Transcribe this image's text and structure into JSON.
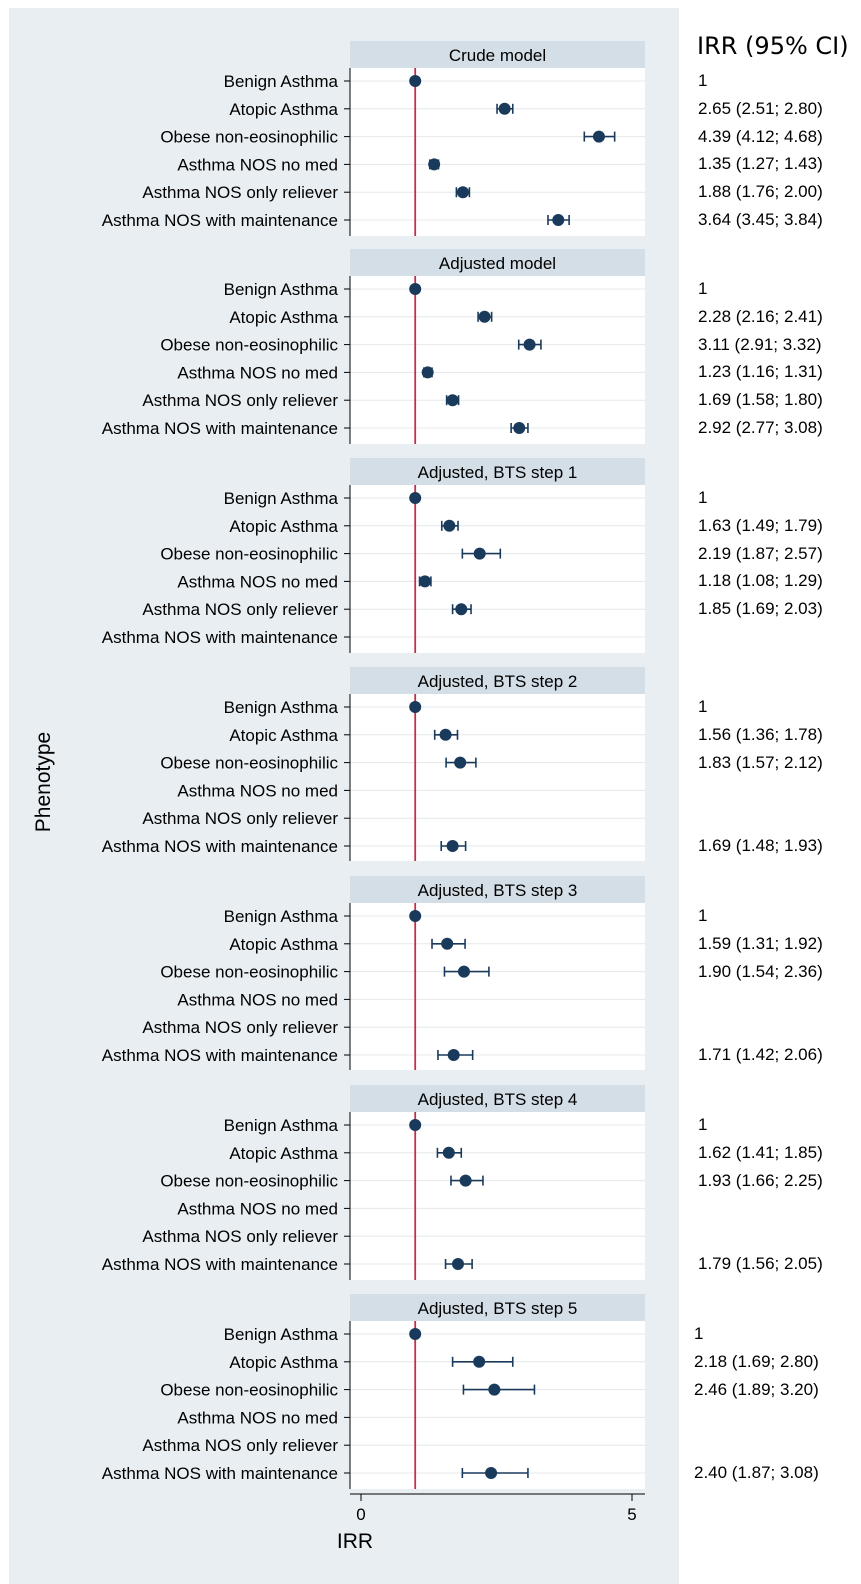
{
  "chart_data": {
    "type": "forest",
    "ylabel": "Phenotype",
    "xlabel": "IRR",
    "xlim": [
      0,
      5
    ],
    "xticks": [
      0,
      5
    ],
    "reference_line": 1,
    "colors": {
      "marker": "#1a3a5c",
      "reference": "#c0304a",
      "panel_bg": "#ffffff",
      "plot_bg": "#e9eef2",
      "strip_bg": "#d4dee6"
    },
    "ci_header": "IRR (95% CI)",
    "categories": [
      "Benign Asthma",
      "Atopic Asthma",
      "Obese non-eosinophilic",
      "Asthma NOS no med",
      "Asthma NOS only reliever",
      "Asthma NOS with maintenance"
    ],
    "panels": [
      {
        "title": "Crude model",
        "rows": [
          {
            "est": 1,
            "lo": null,
            "hi": null,
            "text": "1"
          },
          {
            "est": 2.65,
            "lo": 2.51,
            "hi": 2.8,
            "text": "2.65 (2.51; 2.80)"
          },
          {
            "est": 4.39,
            "lo": 4.12,
            "hi": 4.68,
            "text": "4.39 (4.12; 4.68)"
          },
          {
            "est": 1.35,
            "lo": 1.27,
            "hi": 1.43,
            "text": "1.35 (1.27; 1.43)"
          },
          {
            "est": 1.88,
            "lo": 1.76,
            "hi": 2.0,
            "text": "1.88 (1.76; 2.00)"
          },
          {
            "est": 3.64,
            "lo": 3.45,
            "hi": 3.84,
            "text": "3.64 (3.45; 3.84)"
          }
        ]
      },
      {
        "title": "Adjusted model",
        "rows": [
          {
            "est": 1,
            "lo": null,
            "hi": null,
            "text": "1"
          },
          {
            "est": 2.28,
            "lo": 2.16,
            "hi": 2.41,
            "text": "2.28 (2.16; 2.41)"
          },
          {
            "est": 3.11,
            "lo": 2.91,
            "hi": 3.32,
            "text": "3.11 (2.91; 3.32)"
          },
          {
            "est": 1.23,
            "lo": 1.16,
            "hi": 1.31,
            "text": "1.23 (1.16; 1.31)"
          },
          {
            "est": 1.69,
            "lo": 1.58,
            "hi": 1.8,
            "text": "1.69 (1.58; 1.80)"
          },
          {
            "est": 2.92,
            "lo": 2.77,
            "hi": 3.08,
            "text": "2.92 (2.77; 3.08)"
          }
        ]
      },
      {
        "title": "Adjusted, BTS step 1",
        "rows": [
          {
            "est": 1,
            "lo": null,
            "hi": null,
            "text": "1"
          },
          {
            "est": 1.63,
            "lo": 1.49,
            "hi": 1.79,
            "text": "1.63 (1.49; 1.79)"
          },
          {
            "est": 2.19,
            "lo": 1.87,
            "hi": 2.57,
            "text": "2.19 (1.87; 2.57)"
          },
          {
            "est": 1.18,
            "lo": 1.08,
            "hi": 1.29,
            "text": "1.18 (1.08; 1.29)"
          },
          {
            "est": 1.85,
            "lo": 1.69,
            "hi": 2.03,
            "text": "1.85 (1.69; 2.03)"
          },
          {
            "est": null,
            "lo": null,
            "hi": null,
            "text": ""
          }
        ]
      },
      {
        "title": "Adjusted, BTS step 2",
        "rows": [
          {
            "est": 1,
            "lo": null,
            "hi": null,
            "text": "1"
          },
          {
            "est": 1.56,
            "lo": 1.36,
            "hi": 1.78,
            "text": "1.56 (1.36; 1.78)"
          },
          {
            "est": 1.83,
            "lo": 1.57,
            "hi": 2.12,
            "text": "1.83 (1.57; 2.12)"
          },
          {
            "est": null,
            "lo": null,
            "hi": null,
            "text": ""
          },
          {
            "est": null,
            "lo": null,
            "hi": null,
            "text": ""
          },
          {
            "est": 1.69,
            "lo": 1.48,
            "hi": 1.93,
            "text": "1.69 (1.48; 1.93)"
          }
        ]
      },
      {
        "title": "Adjusted, BTS step 3",
        "rows": [
          {
            "est": 1,
            "lo": null,
            "hi": null,
            "text": "1"
          },
          {
            "est": 1.59,
            "lo": 1.31,
            "hi": 1.92,
            "text": "1.59 (1.31; 1.92)"
          },
          {
            "est": 1.9,
            "lo": 1.54,
            "hi": 2.36,
            "text": "1.90 (1.54; 2.36)"
          },
          {
            "est": null,
            "lo": null,
            "hi": null,
            "text": ""
          },
          {
            "est": null,
            "lo": null,
            "hi": null,
            "text": ""
          },
          {
            "est": 1.71,
            "lo": 1.42,
            "hi": 2.06,
            "text": "1.71 (1.42; 2.06)"
          }
        ]
      },
      {
        "title": "Adjusted, BTS step 4",
        "rows": [
          {
            "est": 1,
            "lo": null,
            "hi": null,
            "text": "1"
          },
          {
            "est": 1.62,
            "lo": 1.41,
            "hi": 1.85,
            "text": "1.62 (1.41; 1.85)"
          },
          {
            "est": 1.93,
            "lo": 1.66,
            "hi": 2.25,
            "text": "1.93 (1.66; 2.25)"
          },
          {
            "est": null,
            "lo": null,
            "hi": null,
            "text": ""
          },
          {
            "est": null,
            "lo": null,
            "hi": null,
            "text": ""
          },
          {
            "est": 1.79,
            "lo": 1.56,
            "hi": 2.05,
            "text": "1.79 (1.56; 2.05)"
          }
        ]
      },
      {
        "title": "Adjusted, BTS step 5",
        "rows": [
          {
            "est": 1,
            "lo": null,
            "hi": null,
            "text": "1"
          },
          {
            "est": 2.18,
            "lo": 1.69,
            "hi": 2.8,
            "text": "2.18 (1.69; 2.80)"
          },
          {
            "est": 2.46,
            "lo": 1.89,
            "hi": 3.2,
            "text": "2.46 (1.89; 3.20)"
          },
          {
            "est": null,
            "lo": null,
            "hi": null,
            "text": ""
          },
          {
            "est": null,
            "lo": null,
            "hi": null,
            "text": ""
          },
          {
            "est": 2.4,
            "lo": 1.87,
            "hi": 3.08,
            "text": "2.40 (1.87; 3.08)"
          }
        ]
      }
    ]
  }
}
